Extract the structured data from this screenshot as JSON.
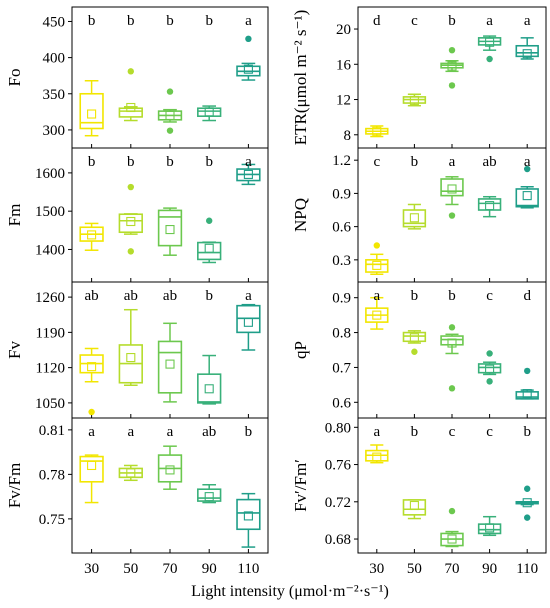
{
  "chart_data": {
    "type": "box",
    "xlabel": "Light intensity (μmol·m⁻²·s⁻¹)",
    "categories": [
      "30",
      "50",
      "70",
      "90",
      "110"
    ],
    "colors": [
      "#f2e600",
      "#b5dc2c",
      "#6cc84e",
      "#38b07a",
      "#1f9e89"
    ],
    "panels": [
      {
        "id": "fo",
        "ylabel": "Fo",
        "ylim": [
          275,
          470
        ],
        "yticks": [
          300,
          350,
          400,
          450
        ],
        "letters": [
          "b",
          "b",
          "b",
          "b",
          "a"
        ],
        "boxes": [
          {
            "min": 292,
            "q1": 302,
            "median": 310,
            "q3": 350,
            "max": 368,
            "mean": 322,
            "outliers": []
          },
          {
            "min": 313,
            "q1": 318,
            "median": 326,
            "q3": 330,
            "max": 332,
            "mean": 331,
            "outliers": [
              381
            ]
          },
          {
            "min": 311,
            "q1": 314,
            "median": 320,
            "q3": 326,
            "max": 328,
            "mean": 320,
            "outliers": [
              299,
              353
            ]
          },
          {
            "min": 313,
            "q1": 319,
            "median": 326,
            "q3": 330,
            "max": 333,
            "mean": 325,
            "outliers": []
          },
          {
            "min": 369,
            "q1": 375,
            "median": 381,
            "q3": 388,
            "max": 392,
            "mean": 384,
            "outliers": [
              426
            ]
          }
        ]
      },
      {
        "id": "etr",
        "ylabel": "ETR(μmol m⁻² s⁻¹)",
        "ylim": [
          6.5,
          22.5
        ],
        "yticks": [
          8,
          12,
          16,
          20
        ],
        "letters": [
          "d",
          "c",
          "b",
          "a",
          "a"
        ],
        "boxes": [
          {
            "min": 7.8,
            "q1": 8.1,
            "median": 8.4,
            "q3": 8.7,
            "max": 9.0,
            "mean": 8.4,
            "outliers": []
          },
          {
            "min": 11.3,
            "q1": 11.6,
            "median": 12.0,
            "q3": 12.3,
            "max": 12.6,
            "mean": 11.9,
            "outliers": []
          },
          {
            "min": 15.2,
            "q1": 15.6,
            "median": 15.9,
            "q3": 16.1,
            "max": 16.4,
            "mean": 15.8,
            "outliers": [
              13.6,
              17.6
            ]
          },
          {
            "min": 17.6,
            "q1": 18.2,
            "median": 18.6,
            "q3": 19.0,
            "max": 19.2,
            "mean": 18.5,
            "outliers": [
              16.6
            ]
          },
          {
            "min": 16.6,
            "q1": 16.9,
            "median": 17.3,
            "q3": 18.1,
            "max": 19.0,
            "mean": 17.2,
            "outliers": []
          }
        ]
      },
      {
        "id": "fm",
        "ylabel": "Fm",
        "ylim": [
          1315,
          1665
        ],
        "yticks": [
          1400,
          1500,
          1600
        ],
        "letters": [
          "b",
          "b",
          "b",
          "b",
          "a"
        ],
        "boxes": [
          {
            "min": 1398,
            "q1": 1422,
            "median": 1440,
            "q3": 1458,
            "max": 1468,
            "mean": 1438,
            "outliers": []
          },
          {
            "min": 1440,
            "q1": 1445,
            "median": 1475,
            "q3": 1492,
            "max": 1493,
            "mean": 1473,
            "outliers": [
              1395,
              1563
            ]
          },
          {
            "min": 1385,
            "q1": 1410,
            "median": 1485,
            "q3": 1502,
            "max": 1508,
            "mean": 1452,
            "outliers": []
          },
          {
            "min": 1366,
            "q1": 1374,
            "median": 1392,
            "q3": 1418,
            "max": 1419,
            "mean": 1403,
            "outliers": [
              1475
            ]
          },
          {
            "min": 1570,
            "q1": 1580,
            "median": 1596,
            "q3": 1610,
            "max": 1622,
            "mean": 1596,
            "outliers": []
          }
        ]
      },
      {
        "id": "npq",
        "ylabel": "NPQ",
        "ylim": [
          0.1,
          1.31
        ],
        "yticks": [
          0.3,
          0.6,
          0.9,
          1.2
        ],
        "letters": [
          "c",
          "b",
          "a",
          "ab",
          "a"
        ],
        "boxes": [
          {
            "min": 0.17,
            "q1": 0.19,
            "median": 0.26,
            "q3": 0.3,
            "max": 0.35,
            "mean": 0.25,
            "outliers": [
              0.43
            ]
          },
          {
            "min": 0.58,
            "q1": 0.6,
            "median": 0.63,
            "q3": 0.75,
            "max": 0.8,
            "mean": 0.68,
            "outliers": []
          },
          {
            "min": 0.8,
            "q1": 0.88,
            "median": 0.92,
            "q3": 1.03,
            "max": 1.05,
            "mean": 0.94,
            "outliers": [
              0.7
            ]
          },
          {
            "min": 0.69,
            "q1": 0.75,
            "median": 0.81,
            "q3": 0.85,
            "max": 0.87,
            "mean": 0.79,
            "outliers": []
          },
          {
            "min": 0.77,
            "q1": 0.78,
            "median": 0.79,
            "q3": 0.94,
            "max": 0.96,
            "mean": 0.88,
            "outliers": [
              1.12
            ]
          }
        ]
      },
      {
        "id": "fv",
        "ylabel": "Fv",
        "ylim": [
          1020,
          1290
        ],
        "yticks": [
          1050,
          1120,
          1190,
          1260
        ],
        "letters": [
          "ab",
          "ab",
          "ab",
          "b",
          "a"
        ],
        "boxes": [
          {
            "min": 1092,
            "q1": 1110,
            "median": 1128,
            "q3": 1145,
            "max": 1158,
            "mean": 1122,
            "outliers": [
              1032
            ]
          },
          {
            "min": 1085,
            "q1": 1090,
            "median": 1128,
            "q3": 1165,
            "max": 1235,
            "mean": 1140,
            "outliers": []
          },
          {
            "min": 1052,
            "q1": 1070,
            "median": 1150,
            "q3": 1172,
            "max": 1208,
            "mean": 1127,
            "outliers": []
          },
          {
            "min": 1048,
            "q1": 1050,
            "median": 1052,
            "q3": 1107,
            "max": 1144,
            "mean": 1078,
            "outliers": []
          },
          {
            "min": 1155,
            "q1": 1190,
            "median": 1218,
            "q3": 1243,
            "max": 1245,
            "mean": 1210,
            "outliers": []
          }
        ]
      },
      {
        "id": "qp",
        "ylabel": "qP",
        "ylim": [
          0.555,
          0.945
        ],
        "yticks": [
          0.6,
          0.7,
          0.8,
          0.9
        ],
        "letters": [
          "a",
          "b",
          "b",
          "c",
          "d"
        ],
        "boxes": [
          {
            "min": 0.81,
            "q1": 0.83,
            "median": 0.85,
            "q3": 0.87,
            "max": 0.9,
            "mean": 0.85,
            "outliers": []
          },
          {
            "min": 0.77,
            "q1": 0.775,
            "median": 0.79,
            "q3": 0.8,
            "max": 0.805,
            "mean": 0.785,
            "outliers": [
              0.745
            ]
          },
          {
            "min": 0.74,
            "q1": 0.765,
            "median": 0.78,
            "q3": 0.79,
            "max": 0.795,
            "mean": 0.77,
            "outliers": [
              0.64,
              0.815
            ]
          },
          {
            "min": 0.68,
            "q1": 0.685,
            "median": 0.7,
            "q3": 0.71,
            "max": 0.715,
            "mean": 0.695,
            "outliers": [
              0.66,
              0.74
            ]
          },
          {
            "min": 0.61,
            "q1": 0.61,
            "median": 0.615,
            "q3": 0.63,
            "max": 0.635,
            "mean": 0.625,
            "outliers": [
              0.69
            ]
          }
        ]
      },
      {
        "id": "fvfm",
        "ylabel": "Fv/Fm",
        "ylim": [
          0.727,
          0.818
        ],
        "yticks": [
          0.75,
          0.78,
          0.81
        ],
        "letters": [
          "a",
          "a",
          "a",
          "ab",
          "b"
        ],
        "boxes": [
          {
            "min": 0.761,
            "q1": 0.775,
            "median": 0.789,
            "q3": 0.792,
            "max": 0.793,
            "mean": 0.786,
            "outliers": []
          },
          {
            "min": 0.776,
            "q1": 0.778,
            "median": 0.781,
            "q3": 0.784,
            "max": 0.786,
            "mean": 0.781,
            "outliers": []
          },
          {
            "min": 0.77,
            "q1": 0.775,
            "median": 0.784,
            "q3": 0.793,
            "max": 0.799,
            "mean": 0.783,
            "outliers": []
          },
          {
            "min": 0.761,
            "q1": 0.762,
            "median": 0.764,
            "q3": 0.77,
            "max": 0.773,
            "mean": 0.765,
            "outliers": []
          },
          {
            "min": 0.731,
            "q1": 0.743,
            "median": 0.754,
            "q3": 0.763,
            "max": 0.767,
            "mean": 0.752,
            "outliers": []
          }
        ]
      },
      {
        "id": "fvfmp",
        "ylabel": "Fv′/Fm′",
        "ylim": [
          0.665,
          0.81
        ],
        "yticks": [
          0.68,
          0.72,
          0.76,
          0.8
        ],
        "letters": [
          "a",
          "b",
          "c",
          "c",
          "b"
        ],
        "boxes": [
          {
            "min": 0.762,
            "q1": 0.764,
            "median": 0.77,
            "q3": 0.775,
            "max": 0.781,
            "mean": 0.768,
            "outliers": []
          },
          {
            "min": 0.702,
            "q1": 0.706,
            "median": 0.712,
            "q3": 0.722,
            "max": 0.722,
            "mean": 0.716,
            "outliers": []
          },
          {
            "min": 0.672,
            "q1": 0.673,
            "median": 0.68,
            "q3": 0.686,
            "max": 0.688,
            "mean": 0.68,
            "outliers": [
              0.71
            ]
          },
          {
            "min": 0.684,
            "q1": 0.686,
            "median": 0.69,
            "q3": 0.696,
            "max": 0.704,
            "mean": 0.692,
            "outliers": []
          },
          {
            "min": 0.717,
            "q1": 0.718,
            "median": 0.719,
            "q3": 0.72,
            "max": 0.72,
            "mean": 0.719,
            "outliers": [
              0.703,
              0.734
            ]
          }
        ]
      }
    ]
  }
}
